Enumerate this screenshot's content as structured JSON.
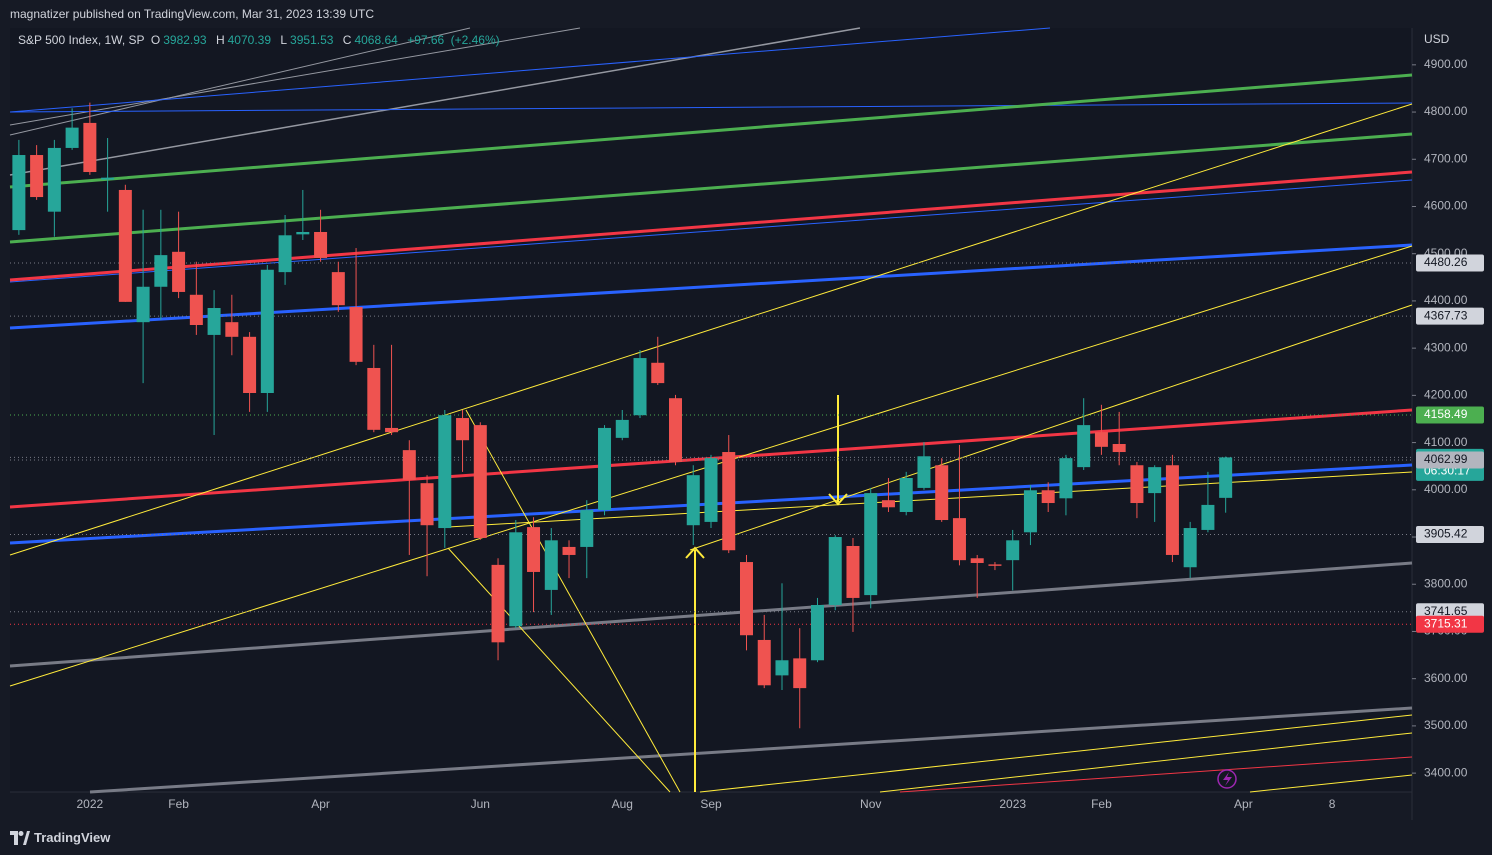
{
  "header": {
    "publisher": "magnatizer published on TradingView.com, Mar 31, 2023 13:39 UTC",
    "brand": "TradingView"
  },
  "chart_data": {
    "type": "candlestick",
    "title": "S&P 500 Index, 1W, SP",
    "currency": "USD",
    "legend": {
      "open": {
        "label": "O",
        "value": 3982.93
      },
      "high": {
        "label": "H",
        "value": 4070.39
      },
      "low": {
        "label": "L",
        "value": 3951.53
      },
      "close": {
        "label": "C",
        "value": 4068.64
      },
      "change": {
        "value": 97.66,
        "label": "+97.66"
      },
      "change_pct": {
        "value": 2.46,
        "label": "(+2.46%)"
      }
    },
    "up_color": "#26a69a",
    "down_color": "#ef5350",
    "grid": false,
    "categories": [
      null,
      null,
      null,
      null,
      "2022",
      null,
      null,
      null,
      null,
      "Feb",
      null,
      null,
      null,
      null,
      null,
      null,
      null,
      "Apr",
      null,
      null,
      null,
      null,
      null,
      null,
      null,
      null,
      "Jun",
      null,
      null,
      null,
      null,
      null,
      null,
      null,
      "Aug",
      null,
      null,
      null,
      null,
      "Sep",
      null,
      null,
      null,
      null,
      null,
      null,
      null,
      null,
      "Nov",
      null,
      null,
      null,
      null,
      null,
      null,
      null,
      "2023",
      null,
      null,
      null,
      null,
      "Feb",
      null,
      null,
      null,
      null,
      null,
      null,
      null,
      "Apr",
      null,
      null,
      null,
      null,
      "8",
      null,
      null,
      null,
      null
    ],
    "open": [
      4550,
      4709,
      4589,
      4724,
      4777,
      4657,
      4635,
      4355,
      4430,
      4504,
      4413,
      4328,
      4355,
      4324,
      4205,
      4461,
      4541,
      4546,
      4461,
      4387,
      4258,
      4131,
      4084,
      4014,
      3919,
      4152,
      4137,
      3841,
      3711,
      3921,
      3788,
      3879,
      3879,
      3957,
      4110,
      4158,
      4269,
      4194,
      3925,
      3932,
      4080,
      3847,
      3682,
      3607,
      3643,
      3639,
      3756,
      3881,
      3777,
      3978,
      3953,
      4004,
      4052,
      3940,
      3855,
      3842,
      3851,
      3910,
      3999,
      3982,
      4048,
      4122,
      4097,
      4052,
      3993,
      4052,
      3836,
      3915,
      3982.93,
      null,
      null,
      null,
      null,
      null,
      null,
      null,
      null,
      null,
      null
    ],
    "high": [
      4741,
      4730,
      4741,
      4808,
      4820,
      4745,
      4646,
      4593,
      4593,
      4589,
      4483,
      4423,
      4413,
      4334,
      4476,
      4582,
      4635,
      4593,
      4483,
      4512,
      4307,
      4307,
      4105,
      4031,
      4169,
      4169,
      4143,
      3855,
      3936,
      3942,
      3919,
      3893,
      3978,
      4137,
      4169,
      4296,
      4324,
      4201,
      4052,
      4074,
      4116,
      3862,
      3735,
      3802,
      3707,
      3771,
      3904,
      3898,
      4004,
      4025,
      4038,
      4101,
      4067,
      4095,
      3862,
      3847,
      3915,
      4010,
      4016,
      4074,
      4194,
      4180,
      4165,
      4059,
      4052,
      4074,
      3932,
      4038,
      4070.39,
      null,
      null,
      null,
      null,
      null,
      null,
      null,
      null,
      null,
      null
    ],
    "low": [
      4540,
      4614,
      4536,
      4720,
      4667,
      4589,
      4398,
      4226,
      4360,
      4406,
      4328,
      4116,
      4285,
      4165,
      4165,
      4434,
      4529,
      4483,
      4377,
      4264,
      4122,
      4116,
      3862,
      3817,
      3877,
      4038,
      3894,
      3639,
      3707,
      3741,
      3735,
      3813,
      3813,
      3946,
      4105,
      4152,
      4222,
      4052,
      3883,
      3919,
      3866,
      3660,
      3580,
      3576,
      3495,
      3635,
      3745,
      3699,
      3749,
      3953,
      3946,
      4000,
      3932,
      3840,
      3771,
      3830,
      3787,
      3883,
      3953,
      3946,
      4042,
      4074,
      4052,
      3940,
      3932,
      3847,
      3813,
      3910,
      3951.53,
      null,
      null,
      null,
      null,
      null,
      null,
      null,
      null,
      null,
      null
    ],
    "close": [
      4709,
      4620,
      4724,
      4767,
      4673,
      4661,
      4398,
      4430,
      4497,
      4419,
      4349,
      4385,
      4324,
      4205,
      4466,
      4539,
      4546,
      4491,
      4391,
      4271,
      4127,
      4122,
      4021,
      3925,
      4158,
      4105,
      3898,
      3677,
      3910,
      3826,
      3893,
      3862,
      3957,
      4131,
      4148,
      4279,
      4226,
      4059,
      4031,
      4067,
      3872,
      3692,
      3586,
      3639,
      3580,
      3756,
      3900,
      3771,
      3993,
      3963,
      4025,
      4071,
      3936,
      3851,
      3845,
      3839,
      3893,
      3999,
      3972,
      4067,
      4137,
      4091,
      4080,
      3972,
      4048,
      3862,
      3919,
      3968,
      4068.64,
      null,
      null,
      null,
      null,
      null,
      null,
      null,
      null,
      null,
      null
    ],
    "ylim": [
      3360,
      4978
    ],
    "yticks": [
      {
        "value": 3400,
        "label": "3400.00"
      },
      {
        "value": 3500,
        "label": "3500.00"
      },
      {
        "value": 3600,
        "label": "3600.00"
      },
      {
        "value": 3700,
        "label": "3700.00"
      },
      {
        "value": 3800,
        "label": "3800.00"
      },
      {
        "value": 3900,
        "label": "3900.00"
      },
      {
        "value": 4000,
        "label": "4000.00"
      },
      {
        "value": 4100,
        "label": "4100.00"
      },
      {
        "value": 4200,
        "label": "4200.00"
      },
      {
        "value": 4300,
        "label": "4300.00"
      },
      {
        "value": 4400,
        "label": "4400.00"
      },
      {
        "value": 4500,
        "label": "4500.00"
      },
      {
        "value": 4600,
        "label": "4600.00"
      },
      {
        "value": 4700,
        "label": "4700.00"
      },
      {
        "value": 4800,
        "label": "4800.00"
      },
      {
        "value": 4900,
        "label": "4900.00"
      }
    ],
    "price_lines": [
      {
        "value": 4480.26,
        "color": "#d1d4dc",
        "line_color": "#787b86",
        "text_color": "#131722"
      },
      {
        "value": 4367.73,
        "color": "#d1d4dc",
        "line_color": "#787b86",
        "text_color": "#131722"
      },
      {
        "value": 4158.49,
        "color": "#4caf50",
        "line_color": "#4caf50",
        "text_color": "#ffffff"
      },
      {
        "value": 4068.64,
        "color": "#26a69a",
        "line_color": "#787b86",
        "text_color": "#ffffff",
        "countdown": "06:30:17"
      },
      {
        "value": 4062.99,
        "color": "#b2b5be",
        "line_color": "#787b86",
        "text_color": "#131722"
      },
      {
        "value": 3905.42,
        "color": "#d1d4dc",
        "line_color": "#787b86",
        "text_color": "#131722"
      },
      {
        "value": 3741.65,
        "color": "#d1d4dc",
        "line_color": "#787b86",
        "text_color": "#131722"
      },
      {
        "value": 3715.31,
        "color": "#f23645",
        "line_color": "#f23645",
        "text_color": "#ffffff"
      }
    ]
  }
}
